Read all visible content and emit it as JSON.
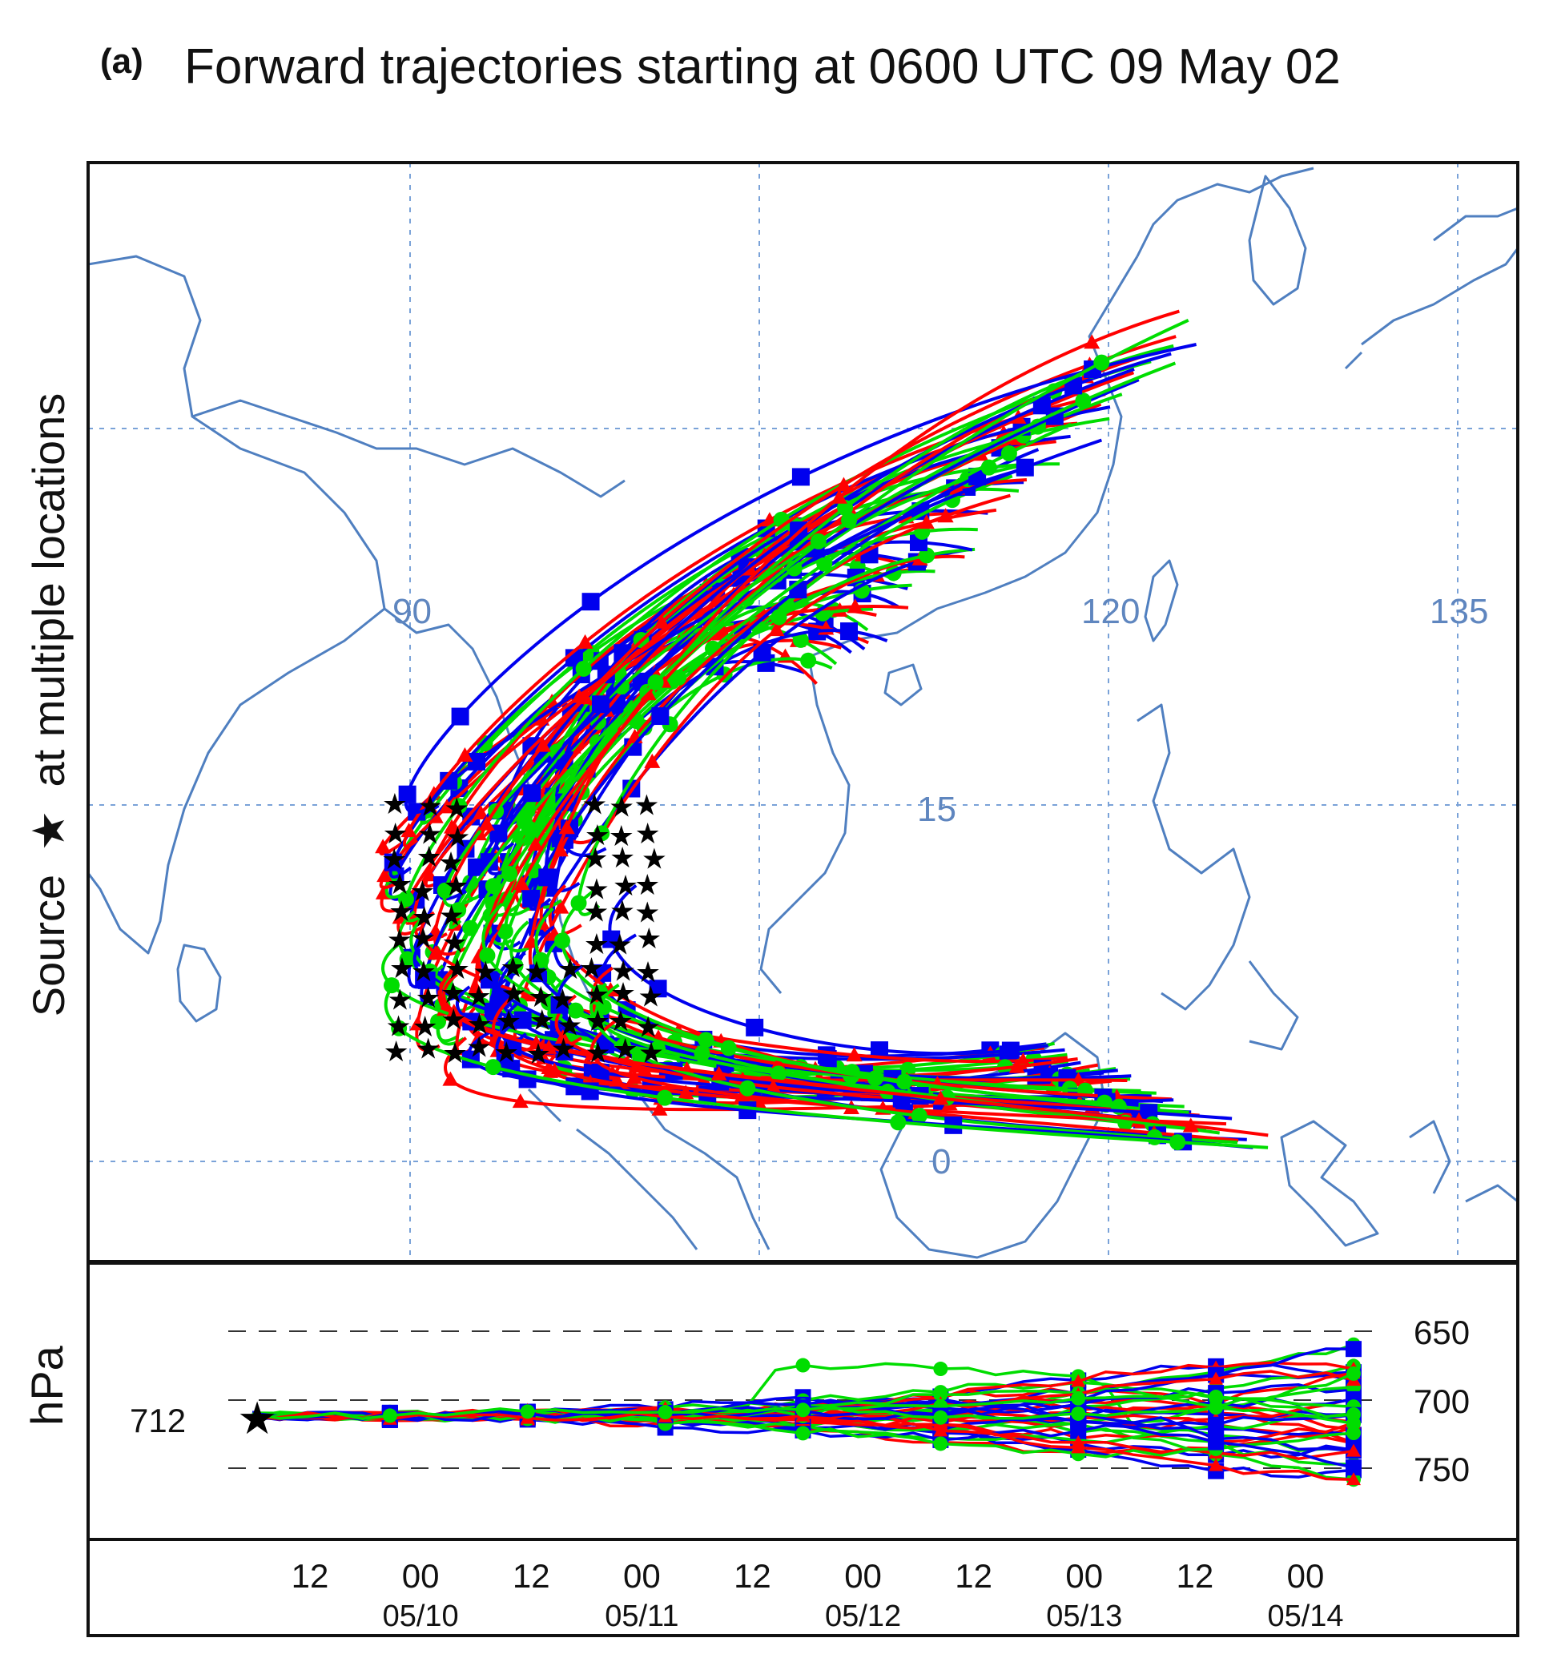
{
  "figure": {
    "panel_label": "(a)",
    "title": "Forward trajectories starting at 0600 UTC 09 May 02"
  },
  "map_panel": {
    "ylabel_left": "Source",
    "ylabel_symbol": "★",
    "ylabel_right": "at multiple locations",
    "lon_labels": [
      "90",
      "120",
      "135"
    ],
    "lat_labels": [
      "15",
      "0"
    ],
    "lon_gridlines": [
      90,
      105,
      120,
      135
    ],
    "lat_gridlines": [
      30,
      15,
      0
    ],
    "trajectory_colors": [
      "#0000ee",
      "#ff0000",
      "#00dd00"
    ],
    "source_marker_color": "#000000",
    "coastline_color": "#4f7fc0"
  },
  "pressure_panel": {
    "ylabel": "hPa",
    "start_value": "712",
    "levels": [
      "650",
      "700",
      "750"
    ],
    "level_values": [
      650,
      700,
      750
    ]
  },
  "time_axis": {
    "ticks": [
      {
        "hour": "12",
        "date": ""
      },
      {
        "hour": "00",
        "date": "05/10"
      },
      {
        "hour": "12",
        "date": ""
      },
      {
        "hour": "00",
        "date": "05/11"
      },
      {
        "hour": "12",
        "date": ""
      },
      {
        "hour": "00",
        "date": "05/12"
      },
      {
        "hour": "12",
        "date": ""
      },
      {
        "hour": "00",
        "date": "05/13"
      },
      {
        "hour": "12",
        "date": ""
      },
      {
        "hour": "00",
        "date": "05/14"
      }
    ]
  }
}
